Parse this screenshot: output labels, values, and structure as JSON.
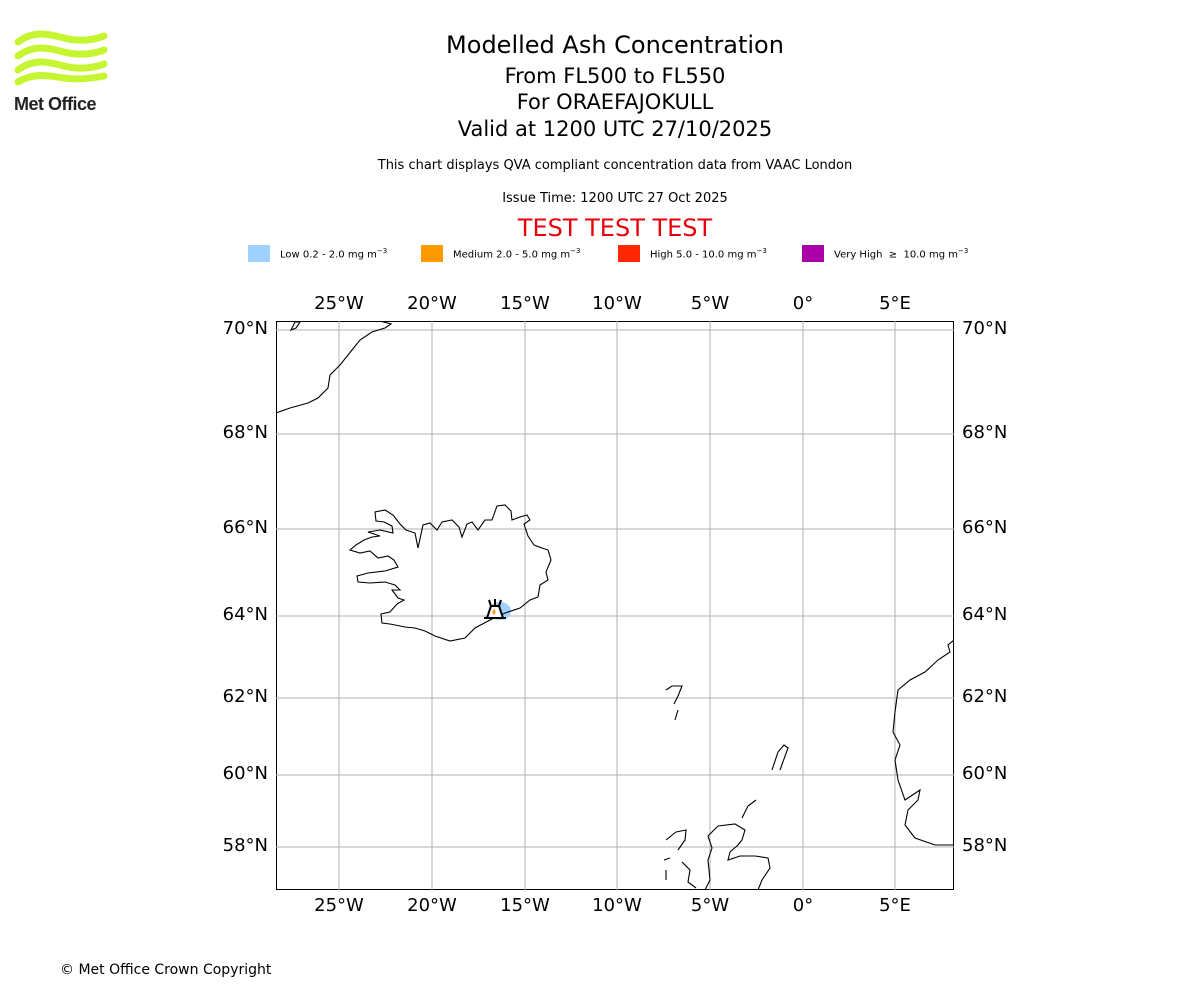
{
  "logo": {
    "text": "Met Office",
    "color": "#c6f531"
  },
  "header": {
    "title": "Modelled Ash Concentration",
    "levels": "From FL500 to FL550",
    "volcano": "For ORAEFAJOKULL",
    "valid": "Valid at 1200 UTC 27/10/2025",
    "description": "This chart displays QVA compliant concentration data from VAAC London",
    "issue_time": "Issue Time: 1200 UTC 27 Oct 2025",
    "test_banner": "TEST TEST TEST",
    "test_color": "#e8000b"
  },
  "legend": [
    {
      "label": "Low 0.2 - 2.0 mg m",
      "unit_exp": "−3",
      "color": "#a0d2ff"
    },
    {
      "label": "Medium 2.0 - 5.0 mg m",
      "unit_exp": "−3",
      "color": "#ff9900"
    },
    {
      "label": "High 5.0 - 10.0 mg m",
      "unit_exp": "−3",
      "color": "#ff2800"
    },
    {
      "label": "Very High  ≥  10.0 mg m",
      "unit_exp": "−3",
      "color": "#aa00aa"
    }
  ],
  "map": {
    "lon_labels": [
      "25°W",
      "20°W",
      "15°W",
      "10°W",
      "5°W",
      "0°",
      "5°E"
    ],
    "lat_labels": [
      "70°N",
      "68°N",
      "66°N",
      "64°N",
      "62°N",
      "60°N",
      "58°N"
    ],
    "volcano_marker": "volcano-icon",
    "ash_level": "Low"
  },
  "footer": {
    "copyright": "© Met Office Crown Copyright"
  }
}
